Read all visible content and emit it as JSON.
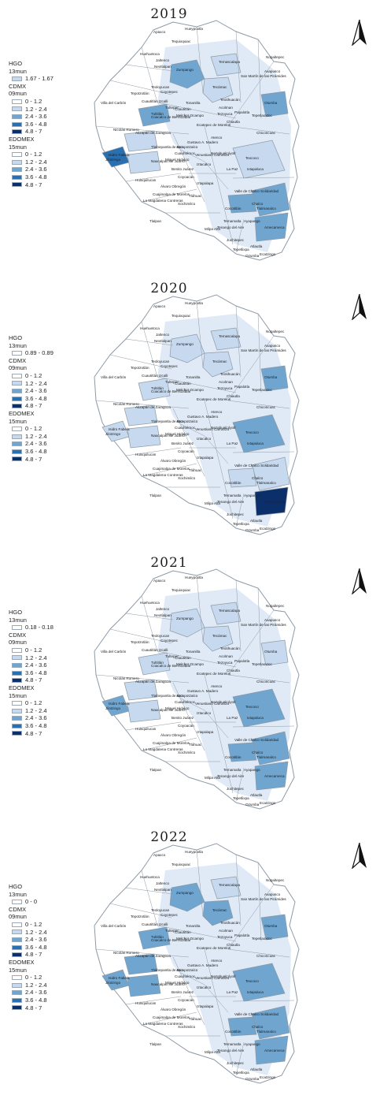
{
  "palette": {
    "c0": "#ffffff",
    "c1": "#c6d9ee",
    "c2": "#6fa5cf",
    "c3": "#2a6fb0",
    "c4": "#0b2f6b",
    "border": "#8d9aa6",
    "map_bg": "#ffffff"
  },
  "panels": [
    {
      "year": "2019",
      "legend": {
        "hgo_title": "HGO",
        "hgo_sub": "13mun",
        "hgo_items": [
          {
            "label": "1.67 - 1.67",
            "color": "#c6d9ee"
          }
        ],
        "cdmx_title": "CDMX",
        "cdmx_sub": "09mun",
        "cdmx_items": [
          {
            "label": "0 - 1.2",
            "color": "#ffffff"
          },
          {
            "label": "1.2 - 2.4",
            "color": "#c6d9ee"
          },
          {
            "label": "2.4 - 3.6",
            "color": "#6fa5cf"
          },
          {
            "label": "3.6 - 4.8",
            "color": "#2a6fb0"
          },
          {
            "label": "4.8 - 7",
            "color": "#0b2f6b"
          }
        ],
        "edomex_title": "EDOMEX",
        "edomex_sub": "15mun",
        "edomex_items": [
          {
            "label": "0 - 1.2",
            "color": "#ffffff"
          },
          {
            "label": "1.2 - 2.4",
            "color": "#c6d9ee"
          },
          {
            "label": "2.4 - 3.6",
            "color": "#6fa5cf"
          },
          {
            "label": "3.6 - 4.8",
            "color": "#2a6fb0"
          },
          {
            "label": "4.8 - 7",
            "color": "#0b2f6b"
          }
        ]
      },
      "regions": [
        {
          "name": "Zumpango",
          "class": 2
        },
        {
          "name": "Tecámac",
          "class": 1
        },
        {
          "name": "Temascalapa",
          "class": 1
        },
        {
          "name": "Otumba",
          "class": 2
        },
        {
          "name": "Jiloztingo",
          "class": 3
        },
        {
          "name": "Coacalco de Berriozábal",
          "class": 2
        },
        {
          "name": "Tlalmanalco",
          "class": 2
        },
        {
          "name": "Chalco",
          "class": 2
        },
        {
          "name": "Amecameca",
          "class": 2
        },
        {
          "name": "Texcoco",
          "class": 1
        },
        {
          "name": "Tlalnepantla de Baz",
          "class": 1
        },
        {
          "name": "Naucalpan de Juárez",
          "class": 1
        }
      ]
    },
    {
      "year": "2020",
      "legend": {
        "hgo_title": "HGO",
        "hgo_sub": "13mun",
        "hgo_items": [
          {
            "label": "0.89 - 0.89",
            "color": "#ffffff"
          }
        ],
        "cdmx_title": "CDMX",
        "cdmx_sub": "09mun",
        "cdmx_items": [
          {
            "label": "0 - 1.2",
            "color": "#ffffff"
          },
          {
            "label": "1.2 - 2.4",
            "color": "#c6d9ee"
          },
          {
            "label": "2.4 - 3.6",
            "color": "#6fa5cf"
          },
          {
            "label": "3.6 - 4.8",
            "color": "#2a6fb0"
          },
          {
            "label": "4.8 - 7",
            "color": "#0b2f6b"
          }
        ],
        "edomex_title": "EDOMEX",
        "edomex_sub": "15mun",
        "edomex_items": [
          {
            "label": "0 - 1.2",
            "color": "#ffffff"
          },
          {
            "label": "1.2 - 2.4",
            "color": "#c6d9ee"
          },
          {
            "label": "2.4 - 3.6",
            "color": "#6fa5cf"
          },
          {
            "label": "3.6 - 4.8",
            "color": "#2a6fb0"
          },
          {
            "label": "4.8 - 7",
            "color": "#0b2f6b"
          }
        ]
      },
      "regions": [
        {
          "name": "Zumpango",
          "class": 1
        },
        {
          "name": "Tecámac",
          "class": 1
        },
        {
          "name": "Temascalapa",
          "class": 1
        },
        {
          "name": "Otumba",
          "class": 2
        },
        {
          "name": "Jiloztingo",
          "class": 1
        },
        {
          "name": "Coacalco de Berriozábal",
          "class": 1
        },
        {
          "name": "Tlalmanalco",
          "class": 1
        },
        {
          "name": "Chalco",
          "class": 1
        },
        {
          "name": "Amecameca",
          "class": 4
        },
        {
          "name": "Texcoco",
          "class": 2
        },
        {
          "name": "Tlalnepantla de Baz",
          "class": 1
        },
        {
          "name": "Naucalpan de Juárez",
          "class": 1
        }
      ]
    },
    {
      "year": "2021",
      "legend": {
        "hgo_title": "HGO",
        "hgo_sub": "13mun",
        "hgo_items": [
          {
            "label": "0.18 - 0.18",
            "color": "#ffffff"
          }
        ],
        "cdmx_title": "CDMX",
        "cdmx_sub": "09mun",
        "cdmx_items": [
          {
            "label": "0 - 1.2",
            "color": "#ffffff"
          },
          {
            "label": "1.2 - 2.4",
            "color": "#c6d9ee"
          },
          {
            "label": "2.4 - 3.6",
            "color": "#6fa5cf"
          },
          {
            "label": "3.6 - 4.8",
            "color": "#2a6fb0"
          },
          {
            "label": "4.8 - 7",
            "color": "#0b2f6b"
          }
        ],
        "edomex_title": "EDOMEX",
        "edomex_sub": "15mun",
        "edomex_items": [
          {
            "label": "0 - 1.2",
            "color": "#ffffff"
          },
          {
            "label": "1.2 - 2.4",
            "color": "#c6d9ee"
          },
          {
            "label": "2.4 - 3.6",
            "color": "#6fa5cf"
          },
          {
            "label": "3.6 - 4.8",
            "color": "#2a6fb0"
          },
          {
            "label": "4.8 - 7",
            "color": "#0b2f6b"
          }
        ]
      },
      "regions": [
        {
          "name": "Zumpango",
          "class": 1
        },
        {
          "name": "Tecámac",
          "class": 1
        },
        {
          "name": "Temascalapa",
          "class": 1
        },
        {
          "name": "Otumba",
          "class": 1
        },
        {
          "name": "Jiloztingo",
          "class": 2
        },
        {
          "name": "Coacalco de Berriozábal",
          "class": 1
        },
        {
          "name": "Tlalmanalco",
          "class": 2
        },
        {
          "name": "Chalco",
          "class": 2
        },
        {
          "name": "Amecameca",
          "class": 2
        },
        {
          "name": "Texcoco",
          "class": 2
        },
        {
          "name": "Tlalnepantla de Baz",
          "class": 1
        },
        {
          "name": "Naucalpan de Juárez",
          "class": 1
        }
      ]
    },
    {
      "year": "2022",
      "legend": {
        "hgo_title": "HGO",
        "hgo_sub": "13mun",
        "hgo_items": [
          {
            "label": "0 - 0",
            "color": "#ffffff"
          }
        ],
        "cdmx_title": "CDMX",
        "cdmx_sub": "09mun",
        "cdmx_items": [
          {
            "label": "0 - 1.2",
            "color": "#ffffff"
          },
          {
            "label": "1.2 - 2.4",
            "color": "#c6d9ee"
          },
          {
            "label": "2.4 - 3.6",
            "color": "#6fa5cf"
          },
          {
            "label": "3.6 - 4.8",
            "color": "#2a6fb0"
          },
          {
            "label": "4.8 - 7",
            "color": "#0b2f6b"
          }
        ],
        "edomex_title": "EDOMEX",
        "edomex_sub": "15mun",
        "edomex_items": [
          {
            "label": "0 - 1.2",
            "color": "#ffffff"
          },
          {
            "label": "1.2 - 2.4",
            "color": "#c6d9ee"
          },
          {
            "label": "2.4 - 3.6",
            "color": "#6fa5cf"
          },
          {
            "label": "3.6 - 4.8",
            "color": "#2a6fb0"
          },
          {
            "label": "4.8 - 7",
            "color": "#0b2f6b"
          }
        ]
      },
      "regions": [
        {
          "name": "Zumpango",
          "class": 2
        },
        {
          "name": "Tecámac",
          "class": 2
        },
        {
          "name": "Temascalapa",
          "class": 1
        },
        {
          "name": "Otumba",
          "class": 2
        },
        {
          "name": "Jiloztingo",
          "class": 2
        },
        {
          "name": "Coacalco de Berriozábal",
          "class": 2
        },
        {
          "name": "Tlalmanalco",
          "class": 2
        },
        {
          "name": "Chalco",
          "class": 2
        },
        {
          "name": "Amecameca",
          "class": 2
        },
        {
          "name": "Texcoco",
          "class": 2
        },
        {
          "name": "Tlalnepantla de Baz",
          "class": 2
        },
        {
          "name": "Naucalpan de Juárez",
          "class": 2
        }
      ]
    }
  ],
  "place_labels": [
    "Apaxco",
    "Hueypoxtla",
    "Tequixquiac",
    "Huehuetoca",
    "Zumpango",
    "Jaltenco",
    "Nextlalpan",
    "Tecámac",
    "Temascalapa",
    "Axapusco",
    "Nopaltepec",
    "San Martín de las Pirámides",
    "Otumba",
    "Teotihuacán",
    "Acolman",
    "Tepetlaoxtoc",
    "Chiautla",
    "Texcoco",
    "Chiconcuac",
    "Atenco",
    "Ecatepec de Morelos",
    "Tultitlán",
    "Cuautitlán Izcalli",
    "Coyotepec",
    "Tepotzotlán",
    "Teoloyucan",
    "Villa del Carbón",
    "Nicolás Romero",
    "Atizapán de Zaragoza",
    "Tlalnepantla de Baz",
    "Isidro Fabela",
    "Jilotzingo",
    "Naucalpan de Juárez",
    "Huixquilucan",
    "Coacalco de Berriozábal",
    "Tultepec",
    "Melchor Ocampo",
    "Cuautitlán",
    "Tonanitla",
    "Tezoyuca",
    "Papalotla",
    "Nezahualcóyotl",
    "La Paz",
    "Ixtapaluca",
    "Valle de Chalco Solidaridad",
    "Chalco",
    "Tlalmanalco",
    "Cocotitlán",
    "Temamatla",
    "Tenango del Aire",
    "Ayapango",
    "Amecameca",
    "Juchitepec",
    "Atlautla",
    "Ozumba",
    "Tepetlixpa",
    "Ecatzingo",
    "Tlalpan",
    "Milpa Alta",
    "Xochimilco",
    "Tláhuac",
    "Iztapalapa",
    "Coyoacán",
    "Álvaro Obregón",
    "Cuajimalpa de Morelos",
    "La Magdalena Contreras",
    "Azcapotzalco",
    "Gustavo A. Madero",
    "Iztacalco",
    "Benito Juárez",
    "Cuauhtémoc",
    "Miguel Hidalgo",
    "Venustiano Carranza"
  ]
}
